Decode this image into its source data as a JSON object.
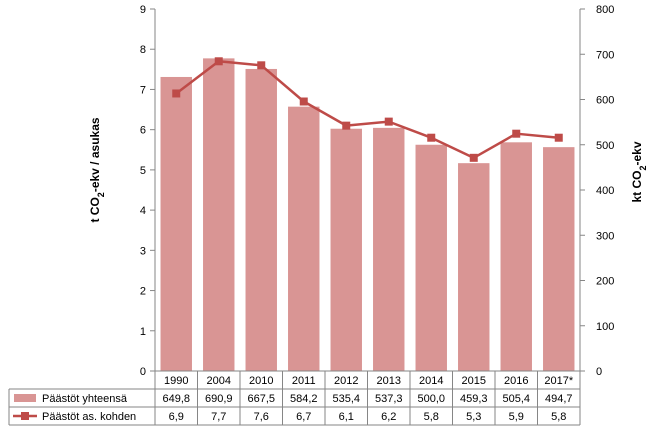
{
  "chart_data": {
    "type": "bar+line",
    "categories": [
      "1990",
      "2004",
      "2010",
      "2011",
      "2012",
      "2013",
      "2014",
      "2015",
      "2016",
      "2017*"
    ],
    "series": [
      {
        "name": "Päästöt yhteensä",
        "kind": "bar",
        "axis": "right",
        "values": [
          649.8,
          690.9,
          667.5,
          584.2,
          535.4,
          537.3,
          500.0,
          459.3,
          505.4,
          494.7
        ],
        "labels": [
          "649,8",
          "690,9",
          "667,5",
          "584,2",
          "535,4",
          "537,3",
          "500,0",
          "459,3",
          "505,4",
          "494,7"
        ],
        "color": "#d99594"
      },
      {
        "name": "Päästöt as. kohden",
        "kind": "line",
        "axis": "left",
        "values": [
          6.9,
          7.7,
          7.6,
          6.7,
          6.1,
          6.2,
          5.8,
          5.3,
          5.9,
          5.8
        ],
        "labels": [
          "6,9",
          "7,7",
          "7,6",
          "6,7",
          "6,1",
          "6,2",
          "5,8",
          "5,3",
          "5,9",
          "5,8"
        ],
        "color": "#be4b48"
      }
    ],
    "left_axis": {
      "title_main": "t CO",
      "title_sub": "2",
      "title_rest": "-ekv / asukas",
      "min": 0,
      "max": 9,
      "step": 1
    },
    "right_axis": {
      "title_main": "kt CO",
      "title_sub": "2",
      "title_rest": "-ekv",
      "min": 0,
      "max": 800,
      "step": 100
    },
    "data_table": true,
    "gridlines": false
  }
}
